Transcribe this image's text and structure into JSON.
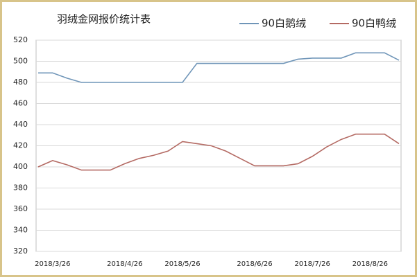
{
  "chart_data": {
    "type": "line",
    "title": "羽绒金网报价统计表",
    "categories": [
      null,
      "2018/3/26",
      null,
      null,
      null,
      null,
      "2018/4/26",
      null,
      null,
      null,
      "2018/5/26",
      null,
      null,
      null,
      null,
      "2018/6/26",
      null,
      null,
      null,
      "2018/7/26",
      null,
      null,
      null,
      "2018/8/26",
      null,
      null
    ],
    "series": [
      {
        "name": "90白鹅绒",
        "color": "#6f95b8",
        "values": [
          489,
          489,
          484,
          480,
          480,
          480,
          480,
          480,
          480,
          480,
          480,
          498,
          498,
          498,
          498,
          498,
          498,
          498,
          502,
          503,
          503,
          503,
          508,
          508,
          508,
          501
        ]
      },
      {
        "name": "90白鸭绒",
        "color": "#b46a63",
        "values": [
          400,
          406,
          402,
          397,
          397,
          397,
          403,
          408,
          411,
          415,
          424,
          422,
          420,
          415,
          408,
          401,
          401,
          401,
          403,
          410,
          419,
          426,
          431,
          431,
          431,
          422
        ]
      }
    ],
    "ylim": [
      320,
      520
    ],
    "yticks": [
      320,
      340,
      360,
      380,
      400,
      420,
      440,
      460,
      480,
      500,
      520
    ],
    "grid": true
  }
}
